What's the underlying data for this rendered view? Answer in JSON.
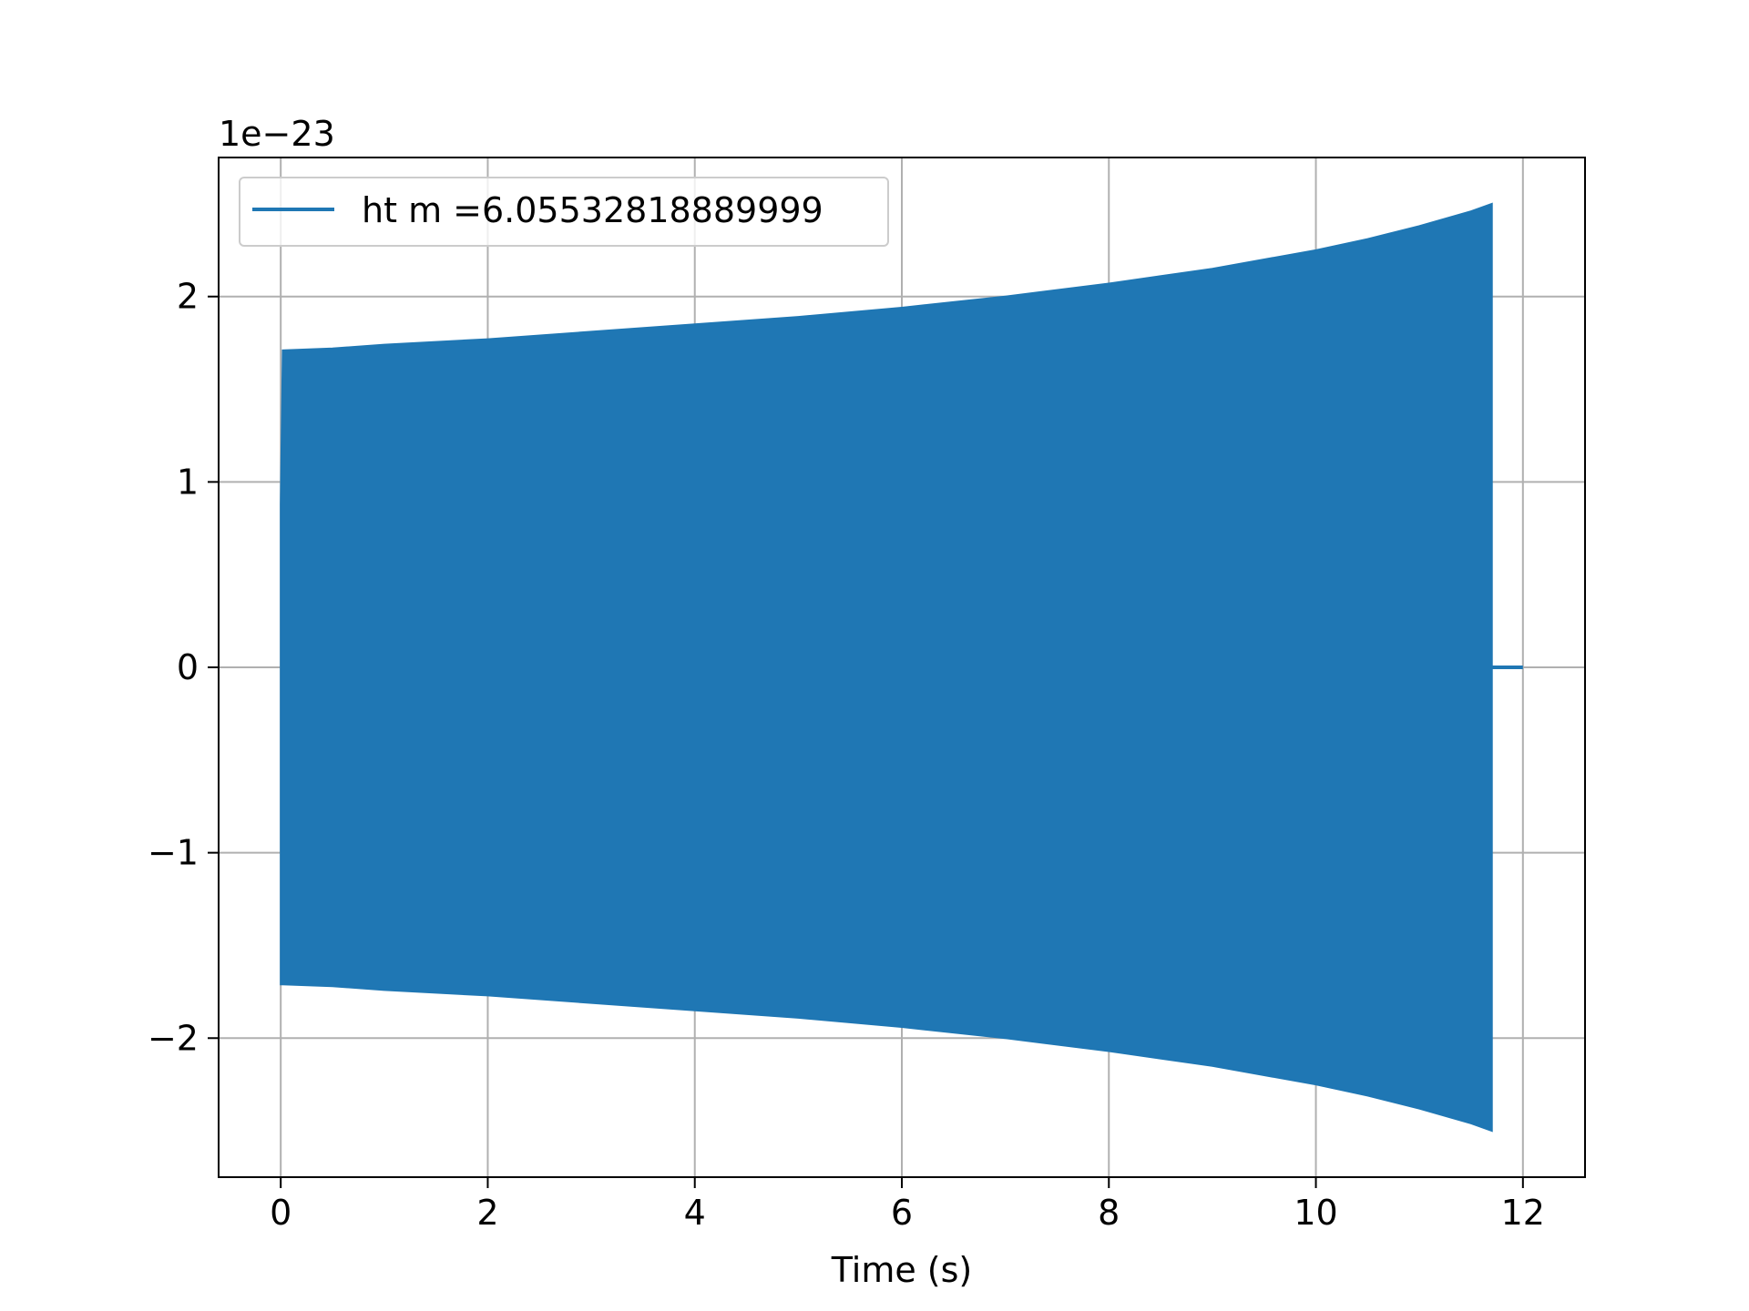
{
  "chart_data": {
    "type": "line",
    "title": "",
    "xlabel": "Time (s)",
    "ylabel": "",
    "y_offset_label": "1e−23",
    "xlim": [
      -0.6,
      12.6
    ],
    "ylim": [
      -2.75,
      2.75
    ],
    "x_ticks": [
      0,
      2,
      4,
      6,
      8,
      10,
      12
    ],
    "x_tick_labels": [
      "0",
      "2",
      "4",
      "6",
      "8",
      "10",
      "12"
    ],
    "y_ticks": [
      -2,
      -1,
      0,
      1,
      2
    ],
    "y_tick_labels": [
      "−2",
      "−1",
      "0",
      "1",
      "2"
    ],
    "grid": true,
    "legend_position": "top-left",
    "series": [
      {
        "name": "ht m =6.05532818889999",
        "color": "#1f77b4",
        "x": [
          0.0,
          0.02,
          0.5,
          1,
          2,
          3,
          4,
          5,
          6,
          7,
          8,
          9,
          10,
          10.5,
          11,
          11.5,
          11.7,
          11.72,
          12.0
        ],
        "envelope_upper": [
          0.88,
          1.71,
          1.72,
          1.74,
          1.77,
          1.81,
          1.85,
          1.89,
          1.94,
          2.0,
          2.07,
          2.15,
          2.25,
          2.31,
          2.38,
          2.46,
          2.5,
          0.0,
          0.0
        ],
        "envelope_lower": [
          -1.71,
          -1.71,
          -1.72,
          -1.74,
          -1.77,
          -1.81,
          -1.85,
          -1.89,
          -1.94,
          -2.0,
          -2.07,
          -2.15,
          -2.25,
          -2.31,
          -2.38,
          -2.46,
          -2.5,
          0.0,
          0.0
        ]
      }
    ]
  }
}
